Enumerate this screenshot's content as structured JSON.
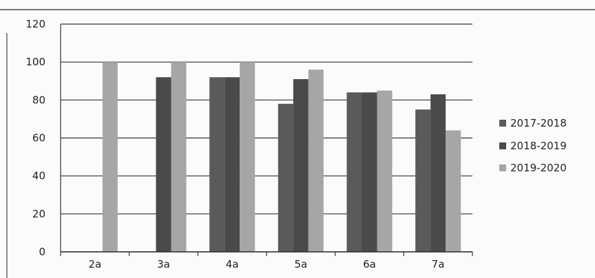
{
  "chart_data": {
    "type": "bar",
    "title": "",
    "xlabel": "",
    "ylabel": "",
    "categories": [
      "2a",
      "3a",
      "4a",
      "5a",
      "6a",
      "7a"
    ],
    "series": [
      {
        "name": "2017-2018",
        "values": [
          0,
          0,
          92,
          78,
          84,
          75
        ],
        "color": "#5a5a5a"
      },
      {
        "name": "2018-2019",
        "values": [
          0,
          92,
          92,
          91,
          84,
          83
        ],
        "color": "#4a4a4a"
      },
      {
        "name": "2019-2020",
        "values": [
          100,
          100,
          100,
          96,
          85,
          64
        ],
        "color": "#a6a6a6"
      }
    ],
    "ylim": [
      0,
      120
    ],
    "yticks": [
      0,
      20,
      40,
      60,
      80,
      100,
      120
    ],
    "grid": true,
    "legend": "right"
  }
}
